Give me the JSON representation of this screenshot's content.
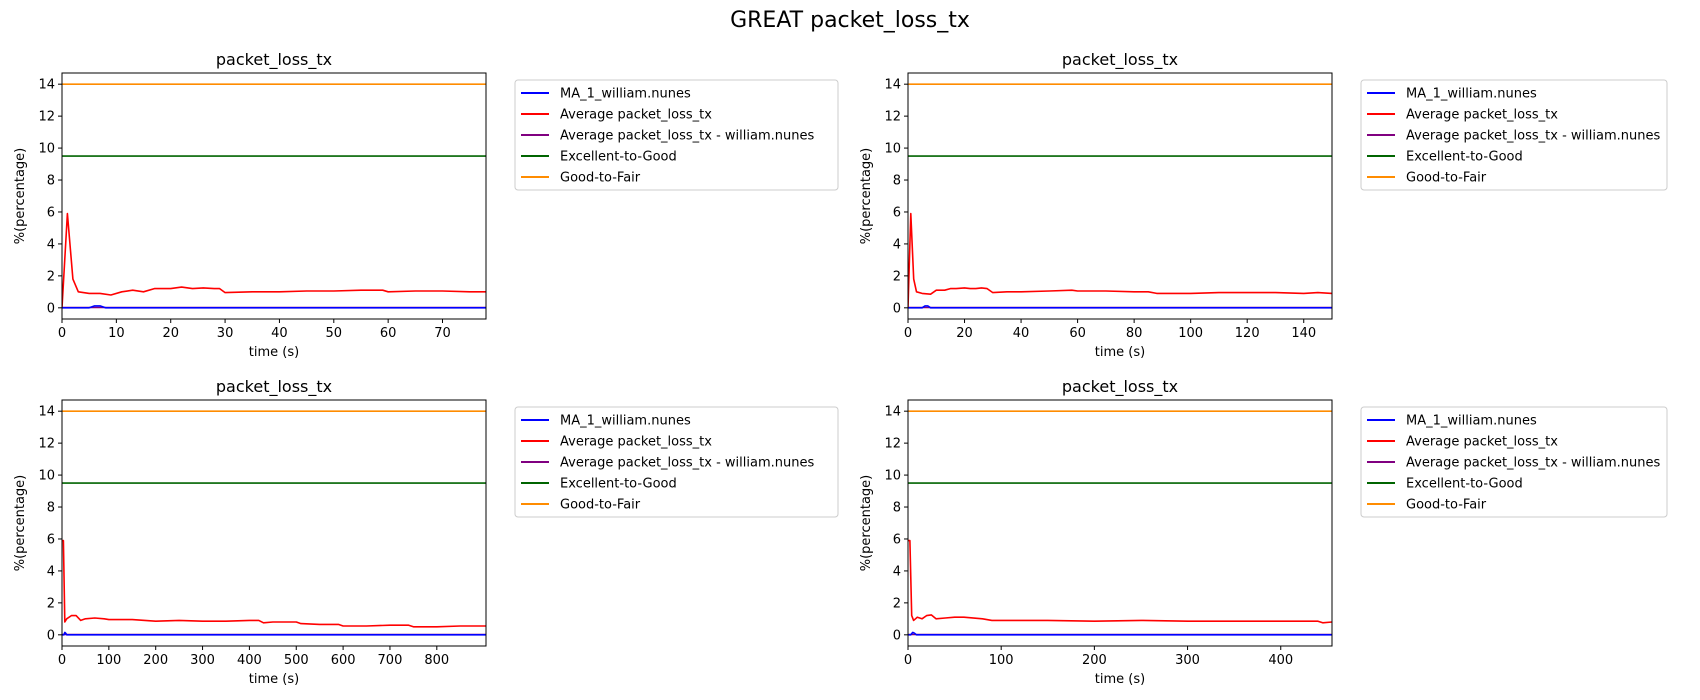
{
  "figure": {
    "title": "GREAT packet_loss_tx"
  },
  "chart_data": [
    {
      "type": "line",
      "title": "packet_loss_tx",
      "xlabel": "time (s)",
      "ylabel": "%(percentage)",
      "xlim": [
        0,
        78
      ],
      "ylim": [
        -0.7,
        14.7
      ],
      "xticks": [
        0,
        10,
        20,
        30,
        40,
        50,
        60,
        70
      ],
      "yticks": [
        0,
        2,
        4,
        6,
        8,
        10,
        12,
        14
      ],
      "legend_position": "outside-right",
      "series": [
        {
          "name": "MA_1_william.nunes",
          "color": "#0000ff",
          "x": [
            0,
            5,
            6,
            7,
            8,
            78
          ],
          "y": [
            0,
            0,
            0.12,
            0.12,
            0,
            0
          ]
        },
        {
          "name": "Average packet_loss_tx",
          "color": "#ff0000",
          "x": [
            0,
            1,
            2,
            3,
            5,
            7,
            9,
            11,
            13,
            15,
            17,
            20,
            22,
            24,
            26,
            28,
            29,
            30,
            35,
            40,
            45,
            50,
            55,
            59,
            60,
            65,
            70,
            75,
            78
          ],
          "y": [
            0,
            5.9,
            1.8,
            1.0,
            0.9,
            0.9,
            0.8,
            1.0,
            1.1,
            1.0,
            1.2,
            1.2,
            1.3,
            1.2,
            1.25,
            1.2,
            1.2,
            0.95,
            1.0,
            1.0,
            1.05,
            1.05,
            1.1,
            1.1,
            1.0,
            1.05,
            1.05,
            1.0,
            1.0
          ]
        },
        {
          "name": "Average packet_loss_tx - william.nunes",
          "color": "#800080",
          "x": [
            0,
            78
          ],
          "y": [
            0.02,
            0.02
          ]
        },
        {
          "name": "Excellent-to-Good",
          "color": "#006400",
          "x": [
            0,
            78
          ],
          "y": [
            9.5,
            9.5
          ]
        },
        {
          "name": "Good-to-Fair",
          "color": "#ff8c00",
          "x": [
            0,
            78
          ],
          "y": [
            14,
            14
          ]
        }
      ]
    },
    {
      "type": "line",
      "title": "packet_loss_tx",
      "xlabel": "time (s)",
      "ylabel": "%(percentage)",
      "xlim": [
        0,
        150
      ],
      "ylim": [
        -0.7,
        14.7
      ],
      "xticks": [
        0,
        20,
        40,
        60,
        80,
        100,
        120,
        140
      ],
      "yticks": [
        0,
        2,
        4,
        6,
        8,
        10,
        12,
        14
      ],
      "legend_position": "outside-right",
      "series": [
        {
          "name": "MA_1_william.nunes",
          "color": "#0000ff",
          "x": [
            0,
            5,
            6,
            7,
            8,
            150
          ],
          "y": [
            0,
            0,
            0.12,
            0.12,
            0,
            0
          ]
        },
        {
          "name": "Average packet_loss_tx",
          "color": "#ff0000",
          "x": [
            0,
            1,
            2,
            3,
            5,
            8,
            10,
            13,
            15,
            17,
            20,
            22,
            24,
            26,
            28,
            30,
            35,
            40,
            50,
            58,
            60,
            70,
            80,
            85,
            88,
            90,
            100,
            110,
            120,
            130,
            140,
            145,
            150
          ],
          "y": [
            0,
            5.9,
            1.8,
            1.0,
            0.9,
            0.85,
            1.1,
            1.1,
            1.2,
            1.2,
            1.25,
            1.2,
            1.2,
            1.25,
            1.2,
            0.95,
            1.0,
            1.0,
            1.05,
            1.1,
            1.05,
            1.05,
            1.0,
            1.0,
            0.9,
            0.9,
            0.9,
            0.95,
            0.95,
            0.95,
            0.9,
            0.95,
            0.9
          ]
        },
        {
          "name": "Average packet_loss_tx - william.nunes",
          "color": "#800080",
          "x": [
            0,
            150
          ],
          "y": [
            0.02,
            0.02
          ]
        },
        {
          "name": "Excellent-to-Good",
          "color": "#006400",
          "x": [
            0,
            150
          ],
          "y": [
            9.5,
            9.5
          ]
        },
        {
          "name": "Good-to-Fair",
          "color": "#ff8c00",
          "x": [
            0,
            150
          ],
          "y": [
            14,
            14
          ]
        }
      ]
    },
    {
      "type": "line",
      "title": "packet_loss_tx",
      "xlabel": "time (s)",
      "ylabel": "%(percentage)",
      "xlim": [
        0,
        905
      ],
      "ylim": [
        -0.7,
        14.7
      ],
      "xticks": [
        0,
        100,
        200,
        300,
        400,
        500,
        600,
        700,
        800
      ],
      "yticks": [
        0,
        2,
        4,
        6,
        8,
        10,
        12,
        14
      ],
      "legend_position": "outside-right",
      "series": [
        {
          "name": "MA_1_william.nunes",
          "color": "#0000ff",
          "x": [
            0,
            4,
            6,
            8,
            10,
            905
          ],
          "y": [
            0,
            0,
            0.15,
            0.1,
            0,
            0
          ]
        },
        {
          "name": "Average packet_loss_tx",
          "color": "#ff0000",
          "x": [
            0,
            3,
            6,
            10,
            20,
            30,
            40,
            50,
            70,
            90,
            100,
            150,
            200,
            250,
            300,
            350,
            400,
            420,
            430,
            450,
            500,
            510,
            550,
            590,
            600,
            650,
            700,
            740,
            750,
            800,
            850,
            905
          ],
          "y": [
            5.9,
            5.9,
            0.8,
            1.0,
            1.2,
            1.2,
            0.9,
            1.0,
            1.05,
            1.0,
            0.95,
            0.95,
            0.85,
            0.9,
            0.85,
            0.85,
            0.9,
            0.9,
            0.75,
            0.8,
            0.8,
            0.7,
            0.65,
            0.65,
            0.55,
            0.55,
            0.6,
            0.6,
            0.5,
            0.5,
            0.55,
            0.55
          ]
        },
        {
          "name": "Average packet_loss_tx - william.nunes",
          "color": "#800080",
          "x": [
            0,
            905
          ],
          "y": [
            0.02,
            0.02
          ]
        },
        {
          "name": "Excellent-to-Good",
          "color": "#006400",
          "x": [
            0,
            905
          ],
          "y": [
            9.5,
            9.5
          ]
        },
        {
          "name": "Good-to-Fair",
          "color": "#ff8c00",
          "x": [
            0,
            905
          ],
          "y": [
            14,
            14
          ]
        }
      ]
    },
    {
      "type": "line",
      "title": "packet_loss_tx",
      "xlabel": "time (s)",
      "ylabel": "%(percentage)",
      "xlim": [
        0,
        455
      ],
      "ylim": [
        -0.7,
        14.7
      ],
      "xticks": [
        0,
        100,
        200,
        300,
        400
      ],
      "yticks": [
        0,
        2,
        4,
        6,
        8,
        10,
        12,
        14
      ],
      "legend_position": "outside-right",
      "series": [
        {
          "name": "MA_1_william.nunes",
          "color": "#0000ff",
          "x": [
            0,
            3,
            5,
            7,
            9,
            455
          ],
          "y": [
            0,
            0,
            0.15,
            0.1,
            0,
            0
          ]
        },
        {
          "name": "Average packet_loss_tx",
          "color": "#ff0000",
          "x": [
            0,
            2,
            4,
            6,
            8,
            10,
            15,
            20,
            25,
            30,
            40,
            50,
            60,
            80,
            90,
            100,
            150,
            200,
            250,
            300,
            350,
            400,
            440,
            445,
            455
          ],
          "y": [
            5.9,
            5.9,
            1.2,
            0.9,
            1.0,
            1.1,
            1.0,
            1.2,
            1.25,
            1.0,
            1.05,
            1.1,
            1.1,
            1.0,
            0.9,
            0.9,
            0.9,
            0.85,
            0.9,
            0.85,
            0.85,
            0.85,
            0.85,
            0.75,
            0.8
          ]
        },
        {
          "name": "Average packet_loss_tx - william.nunes",
          "color": "#800080",
          "x": [
            0,
            455
          ],
          "y": [
            0.02,
            0.02
          ]
        },
        {
          "name": "Excellent-to-Good",
          "color": "#006400",
          "x": [
            0,
            455
          ],
          "y": [
            9.5,
            9.5
          ]
        },
        {
          "name": "Good-to-Fair",
          "color": "#ff8c00",
          "x": [
            0,
            455
          ],
          "y": [
            14,
            14
          ]
        }
      ]
    }
  ]
}
